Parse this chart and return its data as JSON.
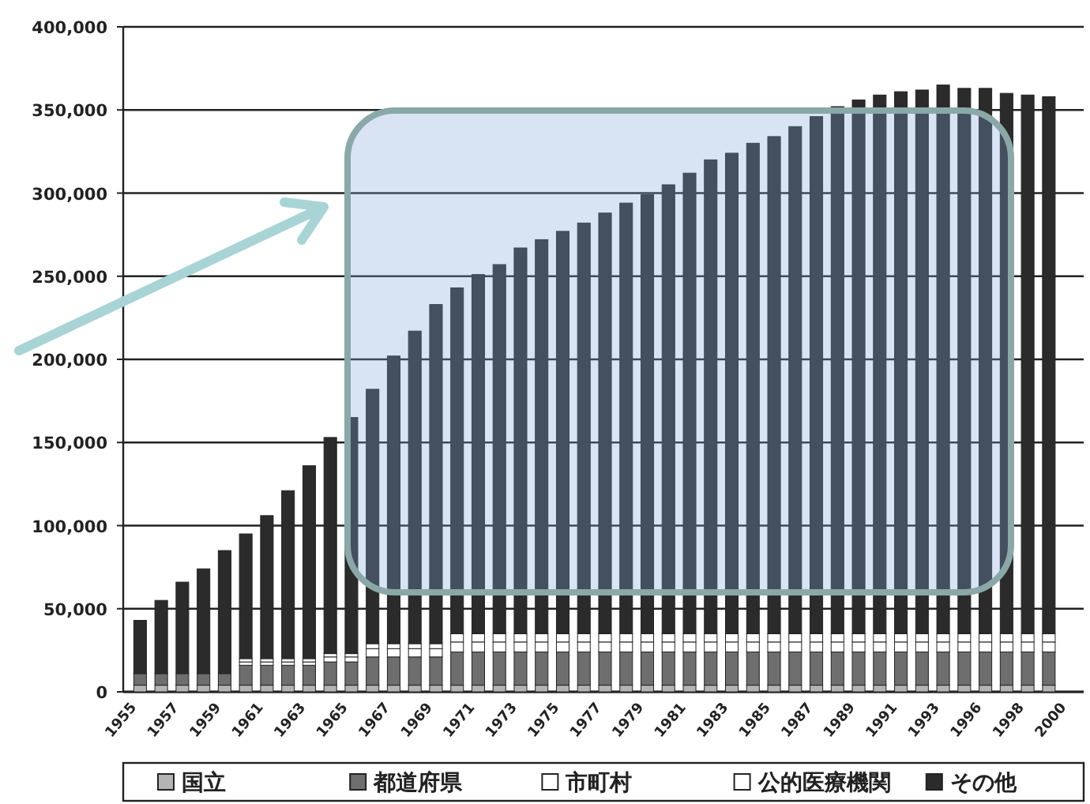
{
  "chart_data": {
    "type": "bar",
    "stacked": true,
    "grid": "y",
    "legend": "bottom",
    "categories": [
      "1955",
      null,
      "1957",
      null,
      "1959",
      null,
      "1961",
      null,
      "1963",
      null,
      "1965",
      null,
      "1967",
      null,
      "1969",
      null,
      "1971",
      null,
      "1973",
      null,
      "1975",
      null,
      "1977",
      null,
      "1979",
      null,
      "1981",
      null,
      "1983",
      null,
      "1985",
      null,
      "1987",
      null,
      "1989",
      null,
      "1991",
      null,
      "1993",
      null,
      "1996",
      null,
      "1998",
      null,
      "2000"
    ],
    "ylim": [
      0,
      400000
    ],
    "yticks": [
      0,
      {
        "value": 50000,
        "label": "50,000"
      },
      {
        "value": 100000,
        "label": "100,000"
      },
      {
        "value": 150000,
        "label": "150,000"
      },
      {
        "value": 200000,
        "label": "200,000"
      },
      {
        "value": 250000,
        "label": "250,000"
      },
      {
        "value": 300000,
        "label": "300,000"
      },
      {
        "value": 350000,
        "label": "350,000"
      },
      {
        "value": 400000,
        "label": "400,000"
      }
    ],
    "series": [
      {
        "name": "国立",
        "color": "#b4b4b4",
        "values": [
          4000,
          4000,
          4000,
          4000,
          4000,
          4000,
          4000,
          4000,
          4000,
          4000,
          4000,
          4000,
          4000,
          4000,
          4000,
          4000,
          4000,
          4000,
          4000,
          4000,
          4000,
          4000,
          4000,
          4000,
          4000,
          4000,
          4000,
          4000,
          4000,
          4000,
          4000,
          4000,
          4000,
          4000,
          4000,
          4000,
          4000,
          4000,
          4000,
          4000,
          4000,
          4000,
          4000,
          4000,
          null
        ]
      },
      {
        "name": "都道府県",
        "color": "#6e6e6e",
        "values": [
          7000,
          7000,
          7000,
          7000,
          7000,
          12000,
          12000,
          12000,
          12000,
          14000,
          14000,
          17000,
          17000,
          17000,
          17000,
          20000,
          20000,
          20000,
          20000,
          20000,
          20000,
          20000,
          20000,
          20000,
          20000,
          20000,
          20000,
          20000,
          20000,
          20000,
          20000,
          20000,
          20000,
          20000,
          20000,
          20000,
          20000,
          20000,
          20000,
          20000,
          20000,
          20000,
          20000,
          20000,
          null
        ]
      },
      {
        "name": "市町村",
        "color": "#ffffff",
        "values": [
          0,
          0,
          0,
          0,
          0,
          2000,
          2000,
          2000,
          2000,
          3000,
          3000,
          5000,
          5000,
          5000,
          5000,
          6000,
          6000,
          6000,
          6000,
          6000,
          6000,
          6000,
          6000,
          6000,
          6000,
          6000,
          6000,
          6000,
          6000,
          6000,
          6000,
          6000,
          6000,
          6000,
          6000,
          6000,
          6000,
          6000,
          6000,
          6000,
          6000,
          6000,
          6000,
          6000,
          null
        ]
      },
      {
        "name": "公的医療機関",
        "color": "#ffffff",
        "values": [
          0,
          0,
          0,
          0,
          0,
          2000,
          2000,
          2000,
          2000,
          2000,
          2000,
          3000,
          3000,
          3000,
          3000,
          5000,
          5000,
          5000,
          5000,
          5000,
          5000,
          5000,
          5000,
          5000,
          5000,
          5000,
          5000,
          5000,
          5000,
          5000,
          5000,
          5000,
          5000,
          5000,
          5000,
          5000,
          5000,
          5000,
          5000,
          5000,
          5000,
          5000,
          5000,
          5000,
          null
        ]
      },
      {
        "name": "その他",
        "color": "#2b2b2b",
        "values": [
          32000,
          44000,
          55000,
          63000,
          74000,
          75000,
          86000,
          101000,
          116000,
          130000,
          142000,
          153000,
          173000,
          188000,
          204000,
          208000,
          216000,
          222000,
          232000,
          237000,
          242000,
          247000,
          253000,
          259000,
          264000,
          270000,
          277000,
          285000,
          289000,
          295000,
          299000,
          305000,
          311000,
          317000,
          321000,
          324000,
          326000,
          327000,
          330000,
          328000,
          328000,
          325000,
          324000,
          323000,
          null
        ]
      }
    ]
  }
}
